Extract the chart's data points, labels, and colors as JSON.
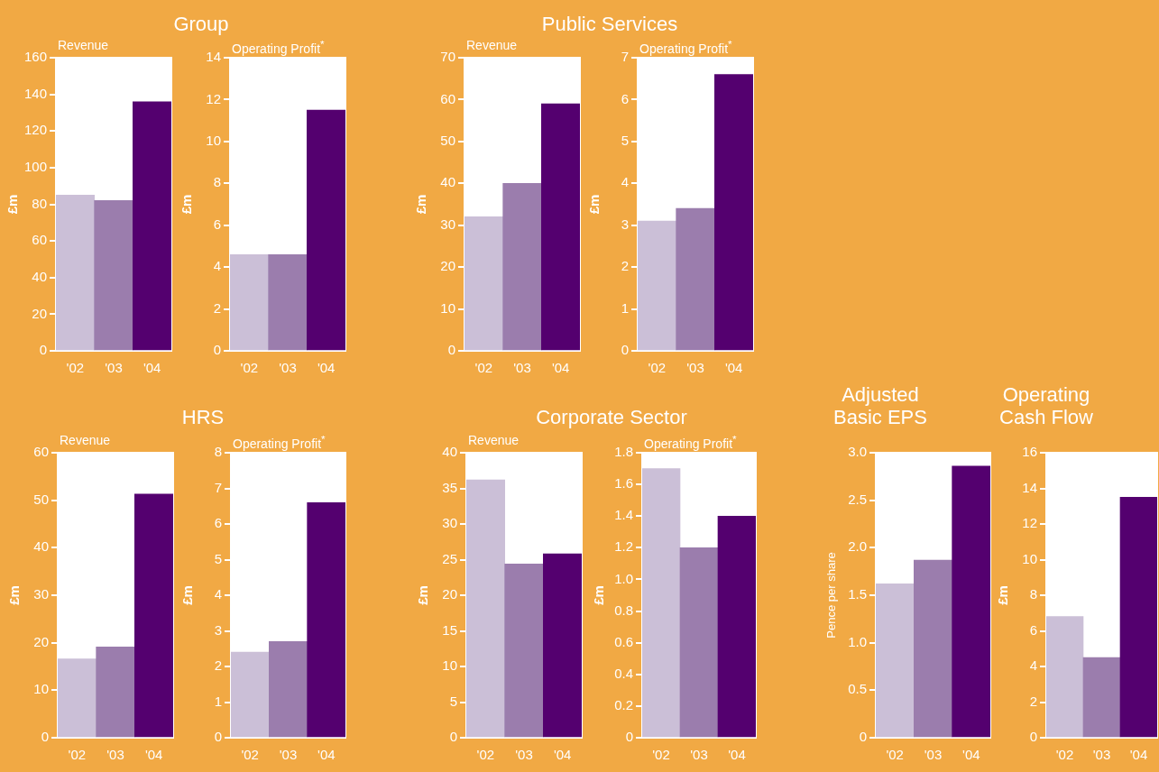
{
  "chart_data": [
    {
      "type": "bar",
      "title": "Group",
      "subtitle": "Revenue",
      "ylabel": "£m",
      "categories": [
        "'02",
        "'03",
        "'04"
      ],
      "values": [
        85,
        82,
        136
      ],
      "colors": [
        "#cbbfd7",
        "#9b7dad",
        "#54006f"
      ],
      "ylim": [
        0,
        160
      ],
      "yticks": [
        0,
        20,
        40,
        60,
        80,
        100,
        120,
        140,
        160
      ]
    },
    {
      "type": "bar",
      "subtitle": "Operating Profit$^{*}$",
      "ylabel": "£m",
      "categories": [
        "'02",
        "'03",
        "'04"
      ],
      "values": [
        4.6,
        4.6,
        11.5
      ],
      "colors": [
        "#cbbfd7",
        "#9b7dad",
        "#54006f"
      ],
      "ylim": [
        0,
        14
      ],
      "yticks": [
        0,
        2,
        4,
        6,
        8,
        10,
        12,
        14
      ]
    },
    {
      "type": "bar",
      "title": "Public Services",
      "subtitle": "Revenue",
      "ylabel": "£m",
      "categories": [
        "'02",
        "'03",
        "'04"
      ],
      "values": [
        32,
        40,
        59
      ],
      "colors": [
        "#cbbfd7",
        "#9b7dad",
        "#54006f"
      ],
      "ylim": [
        0,
        70
      ],
      "yticks": [
        0,
        10,
        20,
        30,
        40,
        50,
        60,
        70
      ]
    },
    {
      "type": "bar",
      "subtitle": "Operating Profit$^{*}$",
      "ylabel": "£m",
      "categories": [
        "'02",
        "'03",
        "'04"
      ],
      "values": [
        3.1,
        3.4,
        6.6
      ],
      "colors": [
        "#cbbfd7",
        "#9b7dad",
        "#54006f"
      ],
      "ylim": [
        0,
        7
      ],
      "yticks": [
        0,
        1,
        2,
        3,
        4,
        5,
        6,
        7
      ]
    },
    {
      "type": "bar",
      "title": "HRS",
      "subtitle": "Revenue",
      "ylabel": "£m",
      "categories": [
        "'02",
        "'03",
        "'04"
      ],
      "values": [
        16.6,
        19.1,
        51.3
      ],
      "colors": [
        "#cbbfd7",
        "#9b7dad",
        "#54006f"
      ],
      "ylim": [
        0,
        60
      ],
      "yticks": [
        0,
        10,
        20,
        30,
        40,
        50,
        60
      ]
    },
    {
      "type": "bar",
      "subtitle": "Operating Profit$^{*}$",
      "ylabel": "£m",
      "categories": [
        "'02",
        "'03",
        "'04"
      ],
      "values": [
        2.4,
        2.7,
        6.6
      ],
      "colors": [
        "#cbbfd7",
        "#9b7dad",
        "#54006f"
      ],
      "ylim": [
        0,
        8
      ],
      "yticks": [
        0,
        1,
        2,
        3,
        4,
        5,
        6,
        7,
        8
      ]
    },
    {
      "type": "bar",
      "title": "Corporate Sector",
      "subtitle": "Revenue",
      "ylabel": "£m",
      "categories": [
        "'02",
        "'03",
        "'04"
      ],
      "values": [
        36.2,
        24.4,
        25.8
      ],
      "colors": [
        "#cbbfd7",
        "#9b7dad",
        "#54006f"
      ],
      "ylim": [
        0,
        40
      ],
      "yticks": [
        0,
        5,
        10,
        15,
        20,
        25,
        30,
        35,
        40
      ]
    },
    {
      "type": "bar",
      "subtitle": "Operating Profit$^{*}$",
      "ylabel": "£m",
      "categories": [
        "'02",
        "'03",
        "'04"
      ],
      "values": [
        1.7,
        1.2,
        1.4
      ],
      "colors": [
        "#cbbfd7",
        "#9b7dad",
        "#54006f"
      ],
      "ylim": [
        0,
        1.8
      ],
      "yticks": [
        {
          "value": 0,
          "label": "0"
        },
        {
          "value": 0.2,
          "label": "0.2"
        },
        {
          "value": 0.4,
          "label": "0.4"
        },
        {
          "value": 0.6,
          "label": "0.6"
        },
        {
          "value": 0.8,
          "label": "0.8"
        },
        {
          "value": 1,
          "label": "1.0"
        },
        {
          "value": 1.2,
          "label": "1.2"
        },
        {
          "value": 1.4,
          "label": "1.4"
        },
        {
          "value": 1.6,
          "label": "1.6"
        },
        {
          "value": 1.8,
          "label": "1.8"
        }
      ]
    },
    {
      "type": "bar",
      "title": "Adjusted Basic EPS",
      "ylabel": "Pence per share",
      "categories": [
        "'02",
        "'03",
        "'04"
      ],
      "values": [
        1.62,
        1.87,
        2.86
      ],
      "colors": [
        "#cbbfd7",
        "#9b7dad",
        "#54006f"
      ],
      "ylim": [
        0,
        3
      ],
      "yticks": [
        {
          "value": 0,
          "label": "0"
        },
        {
          "value": 0.5,
          "label": "0.5"
        },
        {
          "value": 1,
          "label": "1.0"
        },
        {
          "value": 1.5,
          "label": "1.5"
        },
        {
          "value": 2,
          "label": "2.0"
        },
        {
          "value": 2.5,
          "label": "2.5"
        },
        {
          "value": 3,
          "label": "3.0"
        }
      ]
    },
    {
      "type": "bar",
      "title": "Operating Cash Flow",
      "ylabel": "£m",
      "categories": [
        "'02",
        "'03",
        "'04"
      ],
      "values": [
        6.8,
        4.5,
        13.5
      ],
      "colors": [
        "#cbbfd7",
        "#9b7dad",
        "#54006f"
      ],
      "ylim": [
        0,
        16
      ],
      "yticks": [
        0,
        2,
        4,
        6,
        8,
        10,
        12,
        14,
        16
      ]
    }
  ]
}
